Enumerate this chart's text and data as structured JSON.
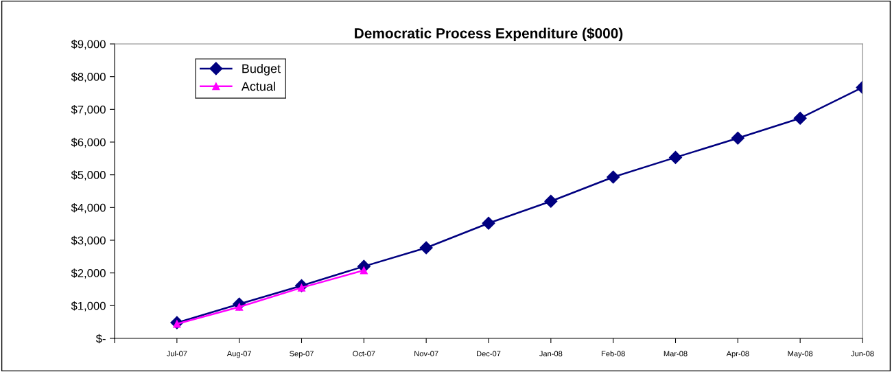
{
  "chart_data": {
    "type": "line",
    "title": "Democratic Process Expenditure ($000)",
    "categories": [
      null,
      "Jul-07",
      "Aug-07",
      "Sep-07",
      "Oct-07",
      "Nov-07",
      "Dec-07",
      "Jan-08",
      "Feb-08",
      "Mar-08",
      "Apr-08",
      "May-08",
      "Jun-08"
    ],
    "series": [
      {
        "name": "Budget",
        "color": "#000080",
        "marker": "diamond",
        "values": [
          null,
          480,
          1050,
          1610,
          2200,
          2770,
          3520,
          4190,
          4930,
          5530,
          6120,
          6730,
          7670
        ]
      },
      {
        "name": "Actual",
        "color": "#ff00ff",
        "marker": "triangle",
        "values": [
          null,
          440,
          960,
          1550,
          2080,
          null,
          null,
          null,
          null,
          null,
          null,
          null,
          null
        ]
      }
    ],
    "ylim": [
      0,
      9000
    ],
    "yticks": [
      {
        "value": 0,
        "label": "$-"
      },
      {
        "value": 1000,
        "label": "$1,000"
      },
      {
        "value": 2000,
        "label": "$2,000"
      },
      {
        "value": 3000,
        "label": "$3,000"
      },
      {
        "value": 4000,
        "label": "$4,000"
      },
      {
        "value": 5000,
        "label": "$5,000"
      },
      {
        "value": 6000,
        "label": "$6,000"
      },
      {
        "value": 7000,
        "label": "$7,000"
      },
      {
        "value": 8000,
        "label": "$8,000"
      },
      {
        "value": 9000,
        "label": "$9,000"
      }
    ],
    "grid": false,
    "legend": "top left",
    "line_style": "solid"
  }
}
